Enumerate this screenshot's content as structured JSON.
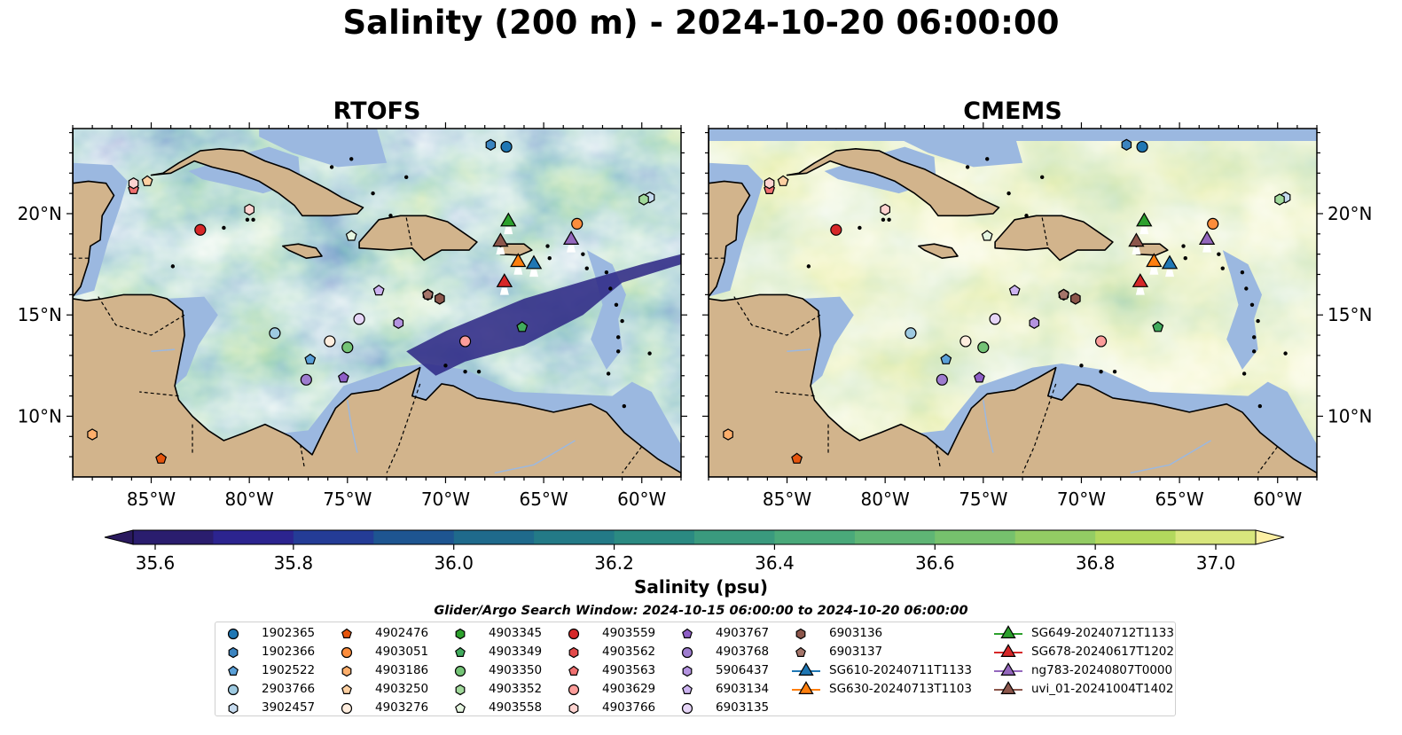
{
  "title": "Salinity (200 m) - 2024-10-20 06:00:00",
  "panels": [
    {
      "title": "RTOFS",
      "field": "rtofs"
    },
    {
      "title": "CMEMS",
      "field": "cmems"
    }
  ],
  "map": {
    "lon_range": [
      -89,
      -58
    ],
    "lat_range": [
      7,
      24.2
    ],
    "xticks": [
      -85,
      -80,
      -75,
      -70,
      -65,
      -60
    ],
    "xtick_labels": [
      "85°W",
      "80°W",
      "75°W",
      "70°W",
      "65°W",
      "60°W"
    ],
    "yticks": [
      10,
      15,
      20
    ],
    "ytick_labels": [
      "10°N",
      "15°N",
      "20°N"
    ],
    "colors": {
      "land": "#d2b48c",
      "shelf": "#9bb8e0",
      "coast": "#000000"
    }
  },
  "colorbar": {
    "label": "Salinity (psu)",
    "vmin": 35.6,
    "vmax": 37.0,
    "ticks": [
      35.6,
      35.8,
      36.0,
      36.2,
      36.4,
      36.6,
      36.8,
      37.0
    ],
    "tick_labels": [
      "35.6",
      "35.8",
      "36.0",
      "36.2",
      "36.4",
      "36.6",
      "36.8",
      "37.0"
    ],
    "colors": [
      "#2a1d6e",
      "#2c248f",
      "#243c96",
      "#1e5591",
      "#1f6a8c",
      "#237a87",
      "#2b8a82",
      "#3a9a7e",
      "#4aa97a",
      "#5fb575",
      "#76c16d",
      "#93cc64",
      "#b2d85d",
      "#d8e67d"
    ],
    "under_color": "#2a1a5e",
    "over_color": "#fdf0a4"
  },
  "search_window": "Glider/Argo Search Window: 2024-10-15 06:00:00 to 2024-10-20 06:00:00",
  "legend": [
    {
      "label": "1902365",
      "marker": "circle",
      "color": "#1f77b4"
    },
    {
      "label": "1902366",
      "marker": "hexagon",
      "color": "#3b84c0"
    },
    {
      "label": "1902522",
      "marker": "pentagon",
      "color": "#5aa0d8"
    },
    {
      "label": "2903766",
      "marker": "circle",
      "color": "#9ecae1"
    },
    {
      "label": "3902457",
      "marker": "hexagon",
      "color": "#c6dbef"
    },
    {
      "label": "4902476",
      "marker": "pentagon",
      "color": "#e6550d"
    },
    {
      "label": "4903051",
      "marker": "circle",
      "color": "#fd8d3c"
    },
    {
      "label": "4903186",
      "marker": "hexagon",
      "color": "#fdae6b"
    },
    {
      "label": "4903250",
      "marker": "pentagon",
      "color": "#fdd0a2"
    },
    {
      "label": "4903276",
      "marker": "circle",
      "color": "#feedde"
    },
    {
      "label": "4903345",
      "marker": "hexagon",
      "color": "#2ca02c"
    },
    {
      "label": "4903349",
      "marker": "pentagon",
      "color": "#41ab5d"
    },
    {
      "label": "4903350",
      "marker": "circle",
      "color": "#74c476"
    },
    {
      "label": "4903352",
      "marker": "hexagon",
      "color": "#a1d99b"
    },
    {
      "label": "4903558",
      "marker": "pentagon",
      "color": "#e5f5e0"
    },
    {
      "label": "4903559",
      "marker": "circle",
      "color": "#d62728"
    },
    {
      "label": "4903562",
      "marker": "hexagon",
      "color": "#e34a4a"
    },
    {
      "label": "4903563",
      "marker": "pentagon",
      "color": "#f07070"
    },
    {
      "label": "4903629",
      "marker": "circle",
      "color": "#fc9d9a"
    },
    {
      "label": "4903766",
      "marker": "hexagon",
      "color": "#fdd3d0"
    },
    {
      "label": "4903767",
      "marker": "pentagon",
      "color": "#8e5ec7"
    },
    {
      "label": "4903768",
      "marker": "circle",
      "color": "#9e7ccf"
    },
    {
      "label": "5906437",
      "marker": "hexagon",
      "color": "#b493e0"
    },
    {
      "label": "6903134",
      "marker": "pentagon",
      "color": "#ccb3f0"
    },
    {
      "label": "6903135",
      "marker": "circle",
      "color": "#e6d5f7"
    },
    {
      "label": "6903136",
      "marker": "hexagon",
      "color": "#8c564b"
    },
    {
      "label": "6903137",
      "marker": "pentagon",
      "color": "#a5756a"
    },
    {
      "label": "SG610-20240711T1133",
      "marker": "triangle",
      "color": "#1f77b4"
    },
    {
      "label": "SG630-20240713T1103",
      "marker": "triangle",
      "color": "#ff7f0e"
    },
    {
      "label": "SG649-20240712T1133",
      "marker": "triangle",
      "color": "#2ca02c"
    },
    {
      "label": "SG678-20240617T1202",
      "marker": "triangle",
      "color": "#d62728"
    },
    {
      "label": "ng783-20240807T0000",
      "marker": "triangle",
      "color": "#9467bd"
    },
    {
      "label": "uvi_01-20241004T1402",
      "marker": "triangle",
      "color": "#8c564b"
    }
  ],
  "platforms": [
    {
      "id": "1902365",
      "lon": -66.9,
      "lat": 23.3
    },
    {
      "id": "1902366",
      "lon": -67.7,
      "lat": 23.4
    },
    {
      "id": "1902522",
      "lon": -76.9,
      "lat": 12.8
    },
    {
      "id": "2903766",
      "lon": -78.7,
      "lat": 14.1
    },
    {
      "id": "3902457",
      "lon": -59.6,
      "lat": 20.8
    },
    {
      "id": "4902476",
      "lon": -84.5,
      "lat": 7.9
    },
    {
      "id": "4903051",
      "lon": -63.3,
      "lat": 19.5
    },
    {
      "id": "4903186",
      "lon": -88.0,
      "lat": 9.1
    },
    {
      "id": "4903250",
      "lon": -85.2,
      "lat": 21.6
    },
    {
      "id": "4903276",
      "lon": -75.9,
      "lat": 13.7
    },
    {
      "id": "4903345",
      "lon": -70.3,
      "lat": 15.8
    },
    {
      "id": "4903349",
      "lon": -66.1,
      "lat": 14.4
    },
    {
      "id": "4903350",
      "lon": -75.0,
      "lat": 13.4
    },
    {
      "id": "4903352",
      "lon": -59.9,
      "lat": 20.7
    },
    {
      "id": "4903558",
      "lon": -74.8,
      "lat": 18.9
    },
    {
      "id": "4903559",
      "lon": -82.5,
      "lat": 19.2
    },
    {
      "id": "4903562",
      "lon": -70.9,
      "lat": 16.0
    },
    {
      "id": "4903563",
      "lon": -85.9,
      "lat": 21.2
    },
    {
      "id": "4903629",
      "lon": -69.0,
      "lat": 13.7
    },
    {
      "id": "4903766",
      "lon": -80.0,
      "lat": 20.2
    },
    {
      "id": "4903767",
      "lon": -75.2,
      "lat": 11.9
    },
    {
      "id": "4903768",
      "lon": -77.1,
      "lat": 11.8
    },
    {
      "id": "5906437",
      "lon": -72.4,
      "lat": 14.6
    },
    {
      "id": "6903134",
      "lon": -73.4,
      "lat": 16.2
    },
    {
      "id": "6903135",
      "lon": -74.4,
      "lat": 14.8
    },
    {
      "id": "6903136",
      "lon": -70.3,
      "lat": 15.8
    },
    {
      "id": "6903137",
      "lon": -70.9,
      "lat": 16.0
    },
    {
      "id": "4903766",
      "lon": -85.9,
      "lat": 21.5
    },
    {
      "id": "SG610-20240711T1133",
      "lon": -65.5,
      "lat": 17.5
    },
    {
      "id": "SG630-20240713T1103",
      "lon": -66.3,
      "lat": 17.6
    },
    {
      "id": "SG649-20240712T1133",
      "lon": -66.8,
      "lat": 19.6
    },
    {
      "id": "SG678-20240617T1202",
      "lon": -67.0,
      "lat": 16.6
    },
    {
      "id": "ng783-20240807T0000",
      "lon": -63.6,
      "lat": 18.7
    },
    {
      "id": "uvi_01-20241004T1402",
      "lon": -67.2,
      "lat": 18.6
    }
  ]
}
